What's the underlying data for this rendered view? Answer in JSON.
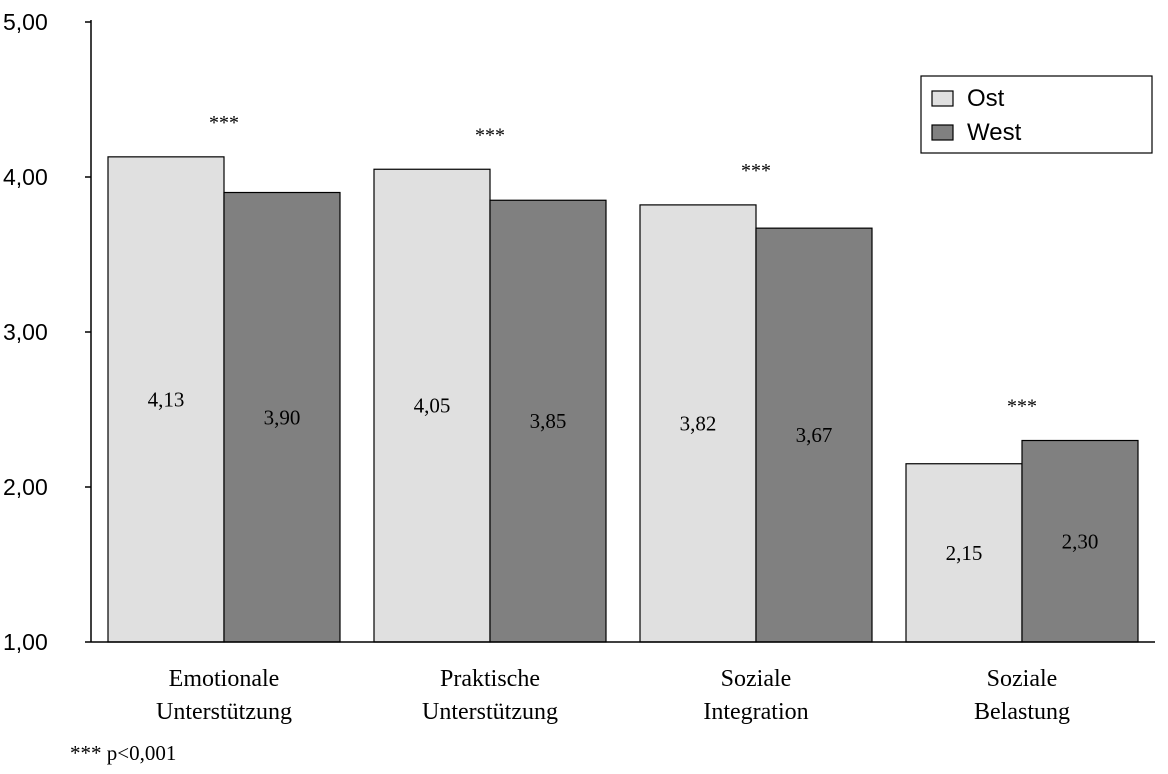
{
  "chart_data": {
    "type": "bar",
    "title": "",
    "xlabel": "",
    "ylabel": "",
    "categories": [
      [
        "Emotionale",
        "Unterstützung"
      ],
      [
        "Praktische",
        "Unterstützung"
      ],
      [
        "Soziale",
        "Integration"
      ],
      [
        "Soziale",
        "Belastung"
      ]
    ],
    "series": [
      {
        "name": "Ost",
        "color": "#e0e0e0",
        "values": [
          4.13,
          4.05,
          3.82,
          2.15
        ],
        "labels": [
          "4,13",
          "4,05",
          "3,82",
          "2,15"
        ]
      },
      {
        "name": "West",
        "color": "#808080",
        "values": [
          3.9,
          3.85,
          3.67,
          2.3
        ],
        "labels": [
          "3,90",
          "3,85",
          "3,67",
          "2,30"
        ]
      }
    ],
    "ylim": [
      1,
      5
    ],
    "yticks": [
      1,
      2,
      3,
      4,
      5
    ],
    "ytick_labels": [
      "1,00",
      "2,00",
      "3,00",
      "4,00",
      "5,00"
    ],
    "significance": [
      "***",
      "***",
      "***",
      "***"
    ],
    "legend_position": "top-right",
    "grid": false,
    "footnote": "*** p<0,001"
  }
}
